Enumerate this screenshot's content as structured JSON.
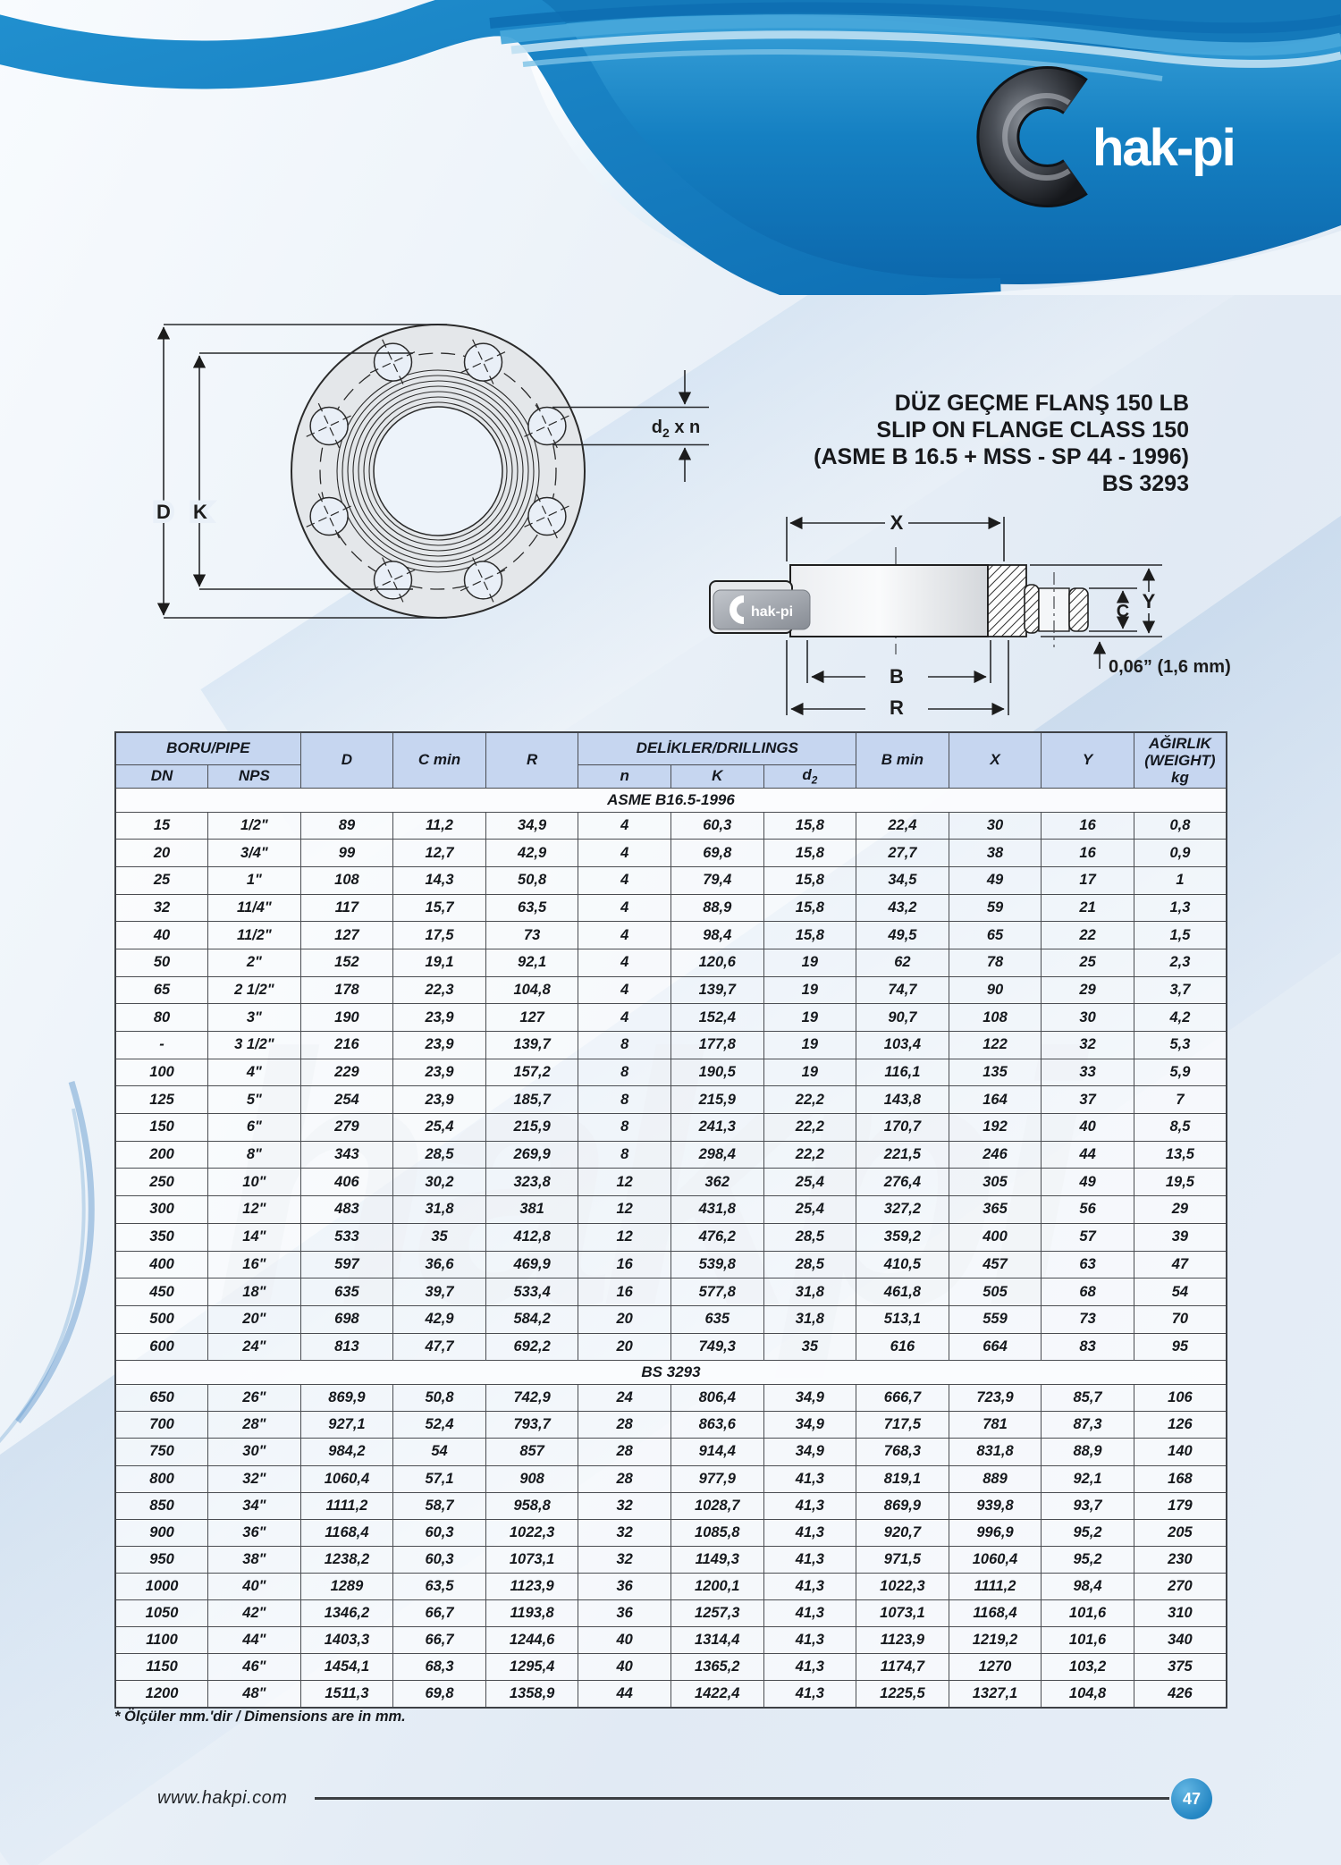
{
  "logo": {
    "text": "hak-pi",
    "watermark": "hakpi"
  },
  "title": {
    "lines": [
      "DÜZ GEÇME FLANŞ 150 LB",
      "SLIP ON FLANGE CLASS 150",
      "(ASME B 16.5 + MSS - SP 44 - 1996)",
      "BS 3293"
    ]
  },
  "drawing": {
    "front_view": {
      "dim_d": "D",
      "dim_k": "K",
      "holes_label_base": "d",
      "holes_label_sub": "2",
      "holes_label_rest": " x n"
    },
    "side_view": {
      "dim_x": "X",
      "dim_b": "B",
      "dim_r": "R",
      "dim_y": "Y",
      "dim_c": "C",
      "raised_face_note": "0,06” (1,6 mm)",
      "logo_text": "hak-pi"
    }
  },
  "table": {
    "headers": {
      "group_pipe": "BORU/PIPE",
      "dn": "DN",
      "nps": "NPS",
      "d": "D",
      "c_min": "C min",
      "r": "R",
      "group_drillings": "DELİKLER/DRILLINGS",
      "n": "n",
      "k": "K",
      "d2_base": "d",
      "d2_sub": "2",
      "b_min": "B min",
      "x": "X",
      "y": "Y",
      "weight_line1": "AĞIRLIK",
      "weight_line2": "(WEIGHT)",
      "weight_line3": "kg"
    },
    "sections": [
      {
        "label": "ASME B16.5-1996",
        "rows": [
          [
            "15",
            "1/2\"",
            "89",
            "11,2",
            "34,9",
            "4",
            "60,3",
            "15,8",
            "22,4",
            "30",
            "16",
            "0,8"
          ],
          [
            "20",
            "3/4\"",
            "99",
            "12,7",
            "42,9",
            "4",
            "69,8",
            "15,8",
            "27,7",
            "38",
            "16",
            "0,9"
          ],
          [
            "25",
            "1\"",
            "108",
            "14,3",
            "50,8",
            "4",
            "79,4",
            "15,8",
            "34,5",
            "49",
            "17",
            "1"
          ],
          [
            "32",
            "11/4\"",
            "117",
            "15,7",
            "63,5",
            "4",
            "88,9",
            "15,8",
            "43,2",
            "59",
            "21",
            "1,3"
          ],
          [
            "40",
            "11/2\"",
            "127",
            "17,5",
            "73",
            "4",
            "98,4",
            "15,8",
            "49,5",
            "65",
            "22",
            "1,5"
          ],
          [
            "50",
            "2\"",
            "152",
            "19,1",
            "92,1",
            "4",
            "120,6",
            "19",
            "62",
            "78",
            "25",
            "2,3"
          ],
          [
            "65",
            "2 1/2\"",
            "178",
            "22,3",
            "104,8",
            "4",
            "139,7",
            "19",
            "74,7",
            "90",
            "29",
            "3,7"
          ],
          [
            "80",
            "3\"",
            "190",
            "23,9",
            "127",
            "4",
            "152,4",
            "19",
            "90,7",
            "108",
            "30",
            "4,2"
          ],
          [
            "-",
            "3 1/2\"",
            "216",
            "23,9",
            "139,7",
            "8",
            "177,8",
            "19",
            "103,4",
            "122",
            "32",
            "5,3"
          ],
          [
            "100",
            "4\"",
            "229",
            "23,9",
            "157,2",
            "8",
            "190,5",
            "19",
            "116,1",
            "135",
            "33",
            "5,9"
          ],
          [
            "125",
            "5\"",
            "254",
            "23,9",
            "185,7",
            "8",
            "215,9",
            "22,2",
            "143,8",
            "164",
            "37",
            "7"
          ],
          [
            "150",
            "6\"",
            "279",
            "25,4",
            "215,9",
            "8",
            "241,3",
            "22,2",
            "170,7",
            "192",
            "40",
            "8,5"
          ],
          [
            "200",
            "8\"",
            "343",
            "28,5",
            "269,9",
            "8",
            "298,4",
            "22,2",
            "221,5",
            "246",
            "44",
            "13,5"
          ],
          [
            "250",
            "10\"",
            "406",
            "30,2",
            "323,8",
            "12",
            "362",
            "25,4",
            "276,4",
            "305",
            "49",
            "19,5"
          ],
          [
            "300",
            "12\"",
            "483",
            "31,8",
            "381",
            "12",
            "431,8",
            "25,4",
            "327,2",
            "365",
            "56",
            "29"
          ],
          [
            "350",
            "14\"",
            "533",
            "35",
            "412,8",
            "12",
            "476,2",
            "28,5",
            "359,2",
            "400",
            "57",
            "39"
          ],
          [
            "400",
            "16\"",
            "597",
            "36,6",
            "469,9",
            "16",
            "539,8",
            "28,5",
            "410,5",
            "457",
            "63",
            "47"
          ],
          [
            "450",
            "18\"",
            "635",
            "39,7",
            "533,4",
            "16",
            "577,8",
            "31,8",
            "461,8",
            "505",
            "68",
            "54"
          ],
          [
            "500",
            "20\"",
            "698",
            "42,9",
            "584,2",
            "20",
            "635",
            "31,8",
            "513,1",
            "559",
            "73",
            "70"
          ],
          [
            "600",
            "24\"",
            "813",
            "47,7",
            "692,2",
            "20",
            "749,3",
            "35",
            "616",
            "664",
            "83",
            "95"
          ]
        ]
      },
      {
        "label": "BS 3293",
        "rows": [
          [
            "650",
            "26\"",
            "869,9",
            "50,8",
            "742,9",
            "24",
            "806,4",
            "34,9",
            "666,7",
            "723,9",
            "85,7",
            "106"
          ],
          [
            "700",
            "28\"",
            "927,1",
            "52,4",
            "793,7",
            "28",
            "863,6",
            "34,9",
            "717,5",
            "781",
            "87,3",
            "126"
          ],
          [
            "750",
            "30\"",
            "984,2",
            "54",
            "857",
            "28",
            "914,4",
            "34,9",
            "768,3",
            "831,8",
            "88,9",
            "140"
          ],
          [
            "800",
            "32\"",
            "1060,4",
            "57,1",
            "908",
            "28",
            "977,9",
            "41,3",
            "819,1",
            "889",
            "92,1",
            "168"
          ],
          [
            "850",
            "34\"",
            "1111,2",
            "58,7",
            "958,8",
            "32",
            "1028,7",
            "41,3",
            "869,9",
            "939,8",
            "93,7",
            "179"
          ],
          [
            "900",
            "36\"",
            "1168,4",
            "60,3",
            "1022,3",
            "32",
            "1085,8",
            "41,3",
            "920,7",
            "996,9",
            "95,2",
            "205"
          ],
          [
            "950",
            "38\"",
            "1238,2",
            "60,3",
            "1073,1",
            "32",
            "1149,3",
            "41,3",
            "971,5",
            "1060,4",
            "95,2",
            "230"
          ],
          [
            "1000",
            "40\"",
            "1289",
            "63,5",
            "1123,9",
            "36",
            "1200,1",
            "41,3",
            "1022,3",
            "1111,2",
            "98,4",
            "270"
          ],
          [
            "1050",
            "42\"",
            "1346,2",
            "66,7",
            "1193,8",
            "36",
            "1257,3",
            "41,3",
            "1073,1",
            "1168,4",
            "101,6",
            "310"
          ],
          [
            "1100",
            "44\"",
            "1403,3",
            "66,7",
            "1244,6",
            "40",
            "1314,4",
            "41,3",
            "1123,9",
            "1219,2",
            "101,6",
            "340"
          ],
          [
            "1150",
            "46\"",
            "1454,1",
            "68,3",
            "1295,4",
            "40",
            "1365,2",
            "41,3",
            "1174,7",
            "1270",
            "103,2",
            "375"
          ],
          [
            "1200",
            "48\"",
            "1511,3",
            "69,8",
            "1358,9",
            "44",
            "1422,4",
            "41,3",
            "1225,5",
            "1327,1",
            "104,8",
            "426"
          ]
        ]
      }
    ]
  },
  "note": "* Ölçüler mm.'dir / Dimensions are in mm.",
  "footer": {
    "website": "www.hakpi.com",
    "page_number": "47"
  },
  "colors": {
    "banner_blue": "#1580c2",
    "header_cell_blue": "#c6d6f0",
    "badge_blue": "#2587c4",
    "border_gray": "#4a4d52"
  }
}
